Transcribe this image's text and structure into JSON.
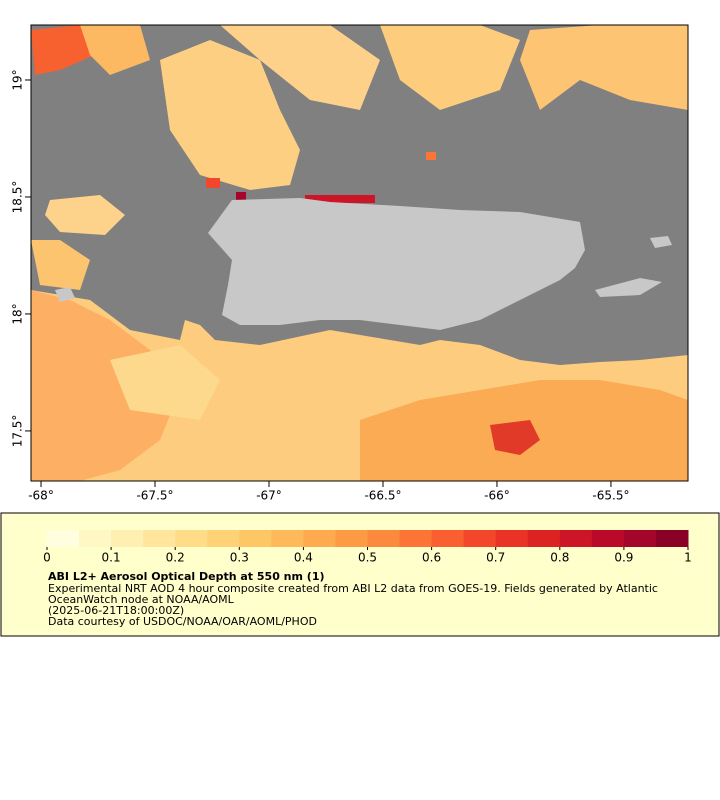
{
  "map": {
    "lon_range": [
      -68.044,
      -65.162
    ],
    "lat_range": [
      17.286,
      19.235
    ],
    "lon_ticks": [
      {
        "value": -68,
        "label": "-68°"
      },
      {
        "value": -67.5,
        "label": "-67.5°"
      },
      {
        "value": -67,
        "label": "-67°"
      },
      {
        "value": -66.5,
        "label": "-66.5°"
      },
      {
        "value": -66,
        "label": "-66°"
      },
      {
        "value": -65.5,
        "label": "-65.5°"
      }
    ],
    "lat_ticks": [
      {
        "value": 19,
        "label": "19°"
      },
      {
        "value": 18.5,
        "label": "18.5°"
      },
      {
        "value": 18,
        "label": "18°"
      },
      {
        "value": 17.5,
        "label": "17.5°"
      }
    ]
  },
  "colorbar": {
    "range": [
      0,
      1
    ],
    "ticks": [
      0,
      0.1,
      0.2,
      0.3,
      0.4,
      0.5,
      0.6,
      0.7,
      0.8,
      0.9,
      1
    ],
    "colors": [
      "#ffffe0",
      "#fff7c4",
      "#ffefb0",
      "#ffe69c",
      "#ffdc88",
      "#ffd277",
      "#fec766",
      "#feba5a",
      "#fdab4e",
      "#fd9b45",
      "#fc8a3e",
      "#fc7537",
      "#f95f31",
      "#f2472b",
      "#e83326",
      "#dc2323",
      "#cc1526",
      "#b90b29",
      "#a3052b",
      "#8a0128"
    ]
  },
  "legend": {
    "title": "ABI L2+ Aerosol Optical Depth at 550 nm (1)",
    "lines": [
      "Experimental NRT AOD 4 hour composite created from ABI L2 data from GOES-19. Fields generated by Atlantic",
      "OceanWatch node at NOAA/AOML",
      "(2025-06-21T18:00:00Z)",
      "Data courtesy of USDOC/NOAA/OAR/AOML/PHOD"
    ]
  }
}
